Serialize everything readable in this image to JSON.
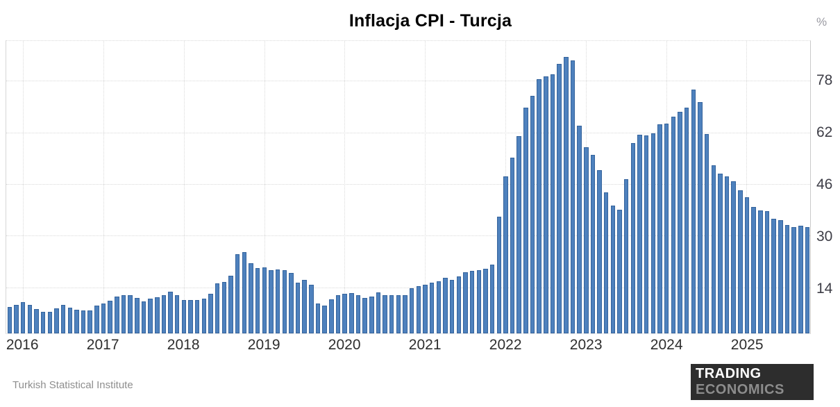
{
  "header": {
    "title": "Inflacja CPI - Turcja"
  },
  "axis": {
    "unit": "%"
  },
  "footer": {
    "source": "Turkish Statistical Institute",
    "logo_line1": "TRADING",
    "logo_line2": "ECONOMICS"
  },
  "colors": {
    "bar_fill": "#4e81bd",
    "bar_border": "#34639c",
    "grid": "#d9d9d9",
    "tick_text": "#3d3d46",
    "year_text": "#2e2e2e",
    "source_text": "#8e8e8e",
    "logo_bg": "#2d2d2d",
    "logo_top_text": "#ffffff",
    "logo_bottom_text": "#8c8c8c"
  },
  "chart_data": {
    "type": "bar",
    "title": "Inflacja CPI - Turcja",
    "unit": "%",
    "source": "Turkish Statistical Institute",
    "x_freq": "monthly",
    "x_start": "2015-11",
    "x_end": "2025-10",
    "ylim": [
      0,
      90.5
    ],
    "yticks": [
      14,
      30,
      46,
      62,
      78
    ],
    "grid": "dotted",
    "legend": "none",
    "years": [
      {
        "year": "2015",
        "month_start": 11,
        "values": [
          8.1,
          8.81
        ]
      },
      {
        "year": "2016",
        "month_start": 1,
        "values": [
          9.58,
          8.78,
          7.46,
          6.57,
          6.58,
          7.64,
          8.79,
          8.05,
          7.28,
          7.16,
          7.0,
          8.53
        ]
      },
      {
        "year": "2017",
        "month_start": 1,
        "values": [
          9.22,
          10.13,
          11.29,
          11.87,
          11.72,
          10.9,
          9.79,
          10.68,
          11.2,
          11.9,
          12.98,
          11.92
        ]
      },
      {
        "year": "2018",
        "month_start": 1,
        "values": [
          10.35,
          10.26,
          10.23,
          10.85,
          12.15,
          15.39,
          15.85,
          17.9,
          24.52,
          25.24,
          21.62,
          20.3
        ]
      },
      {
        "year": "2019",
        "month_start": 1,
        "values": [
          20.35,
          19.67,
          19.71,
          19.5,
          18.71,
          15.72,
          16.65,
          15.01,
          9.26,
          8.55,
          10.56,
          11.84
        ]
      },
      {
        "year": "2020",
        "month_start": 1,
        "values": [
          12.15,
          12.37,
          11.86,
          10.94,
          11.39,
          12.62,
          11.76,
          11.77,
          11.75,
          11.89,
          14.03,
          14.6
        ]
      },
      {
        "year": "2021",
        "month_start": 1,
        "values": [
          14.97,
          15.61,
          16.19,
          17.14,
          16.59,
          17.53,
          18.95,
          19.25,
          19.58,
          19.89,
          21.31,
          36.08
        ]
      },
      {
        "year": "2022",
        "month_start": 1,
        "values": [
          48.69,
          54.44,
          61.14,
          69.97,
          73.5,
          78.62,
          79.6,
          80.21,
          83.45,
          85.51,
          84.39,
          64.27
        ]
      },
      {
        "year": "2023",
        "month_start": 1,
        "values": [
          57.68,
          55.18,
          50.51,
          43.68,
          39.59,
          38.21,
          47.83,
          58.94,
          61.53,
          61.36,
          61.98,
          64.77
        ]
      },
      {
        "year": "2024",
        "month_start": 1,
        "values": [
          64.86,
          67.07,
          68.5,
          69.8,
          75.45,
          71.6,
          61.78,
          51.97,
          49.38,
          48.58,
          47.09,
          44.38
        ]
      },
      {
        "year": "2025",
        "month_start": 1,
        "values": [
          42.12,
          39.05,
          38.1,
          37.86,
          35.41,
          35.05,
          33.52,
          32.95,
          33.29,
          32.87
        ]
      }
    ],
    "year_tick_labels": [
      "2016",
      "2017",
      "2018",
      "2019",
      "2020",
      "2021",
      "2022",
      "2023",
      "2024",
      "2025"
    ]
  }
}
